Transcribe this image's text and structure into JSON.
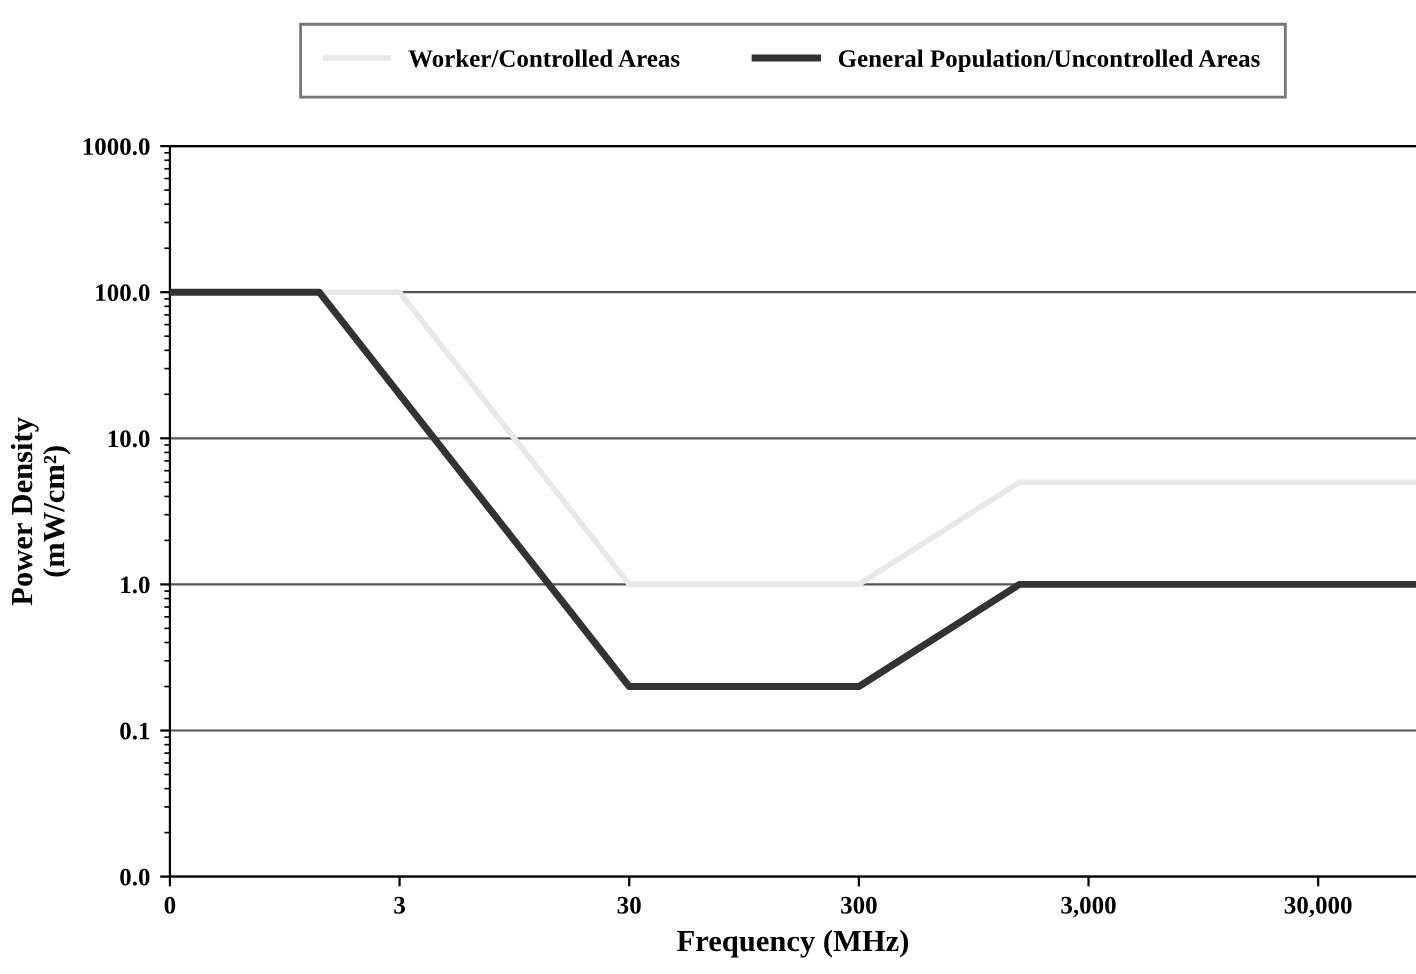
{
  "chart_data": {
    "type": "line",
    "xlabel": "Frequency (MHz)",
    "ylabel": "Power Density\n(mW/cm²)",
    "log": "xy",
    "xlim": [
      0.3,
      80000
    ],
    "ylim": [
      0.01,
      1000
    ],
    "xticks": [
      {
        "value": 0.3,
        "label": "0"
      },
      3,
      30,
      300,
      {
        "value": 3000,
        "label": "3,000"
      },
      {
        "value": 30000,
        "label": "30,000"
      }
    ],
    "yticks": [
      {
        "value": 0.01,
        "label": "0.0"
      },
      {
        "value": 0.1,
        "label": "0.1"
      },
      {
        "value": 1,
        "label": "1.0"
      },
      {
        "value": 10,
        "label": "10.0"
      },
      {
        "value": 100,
        "label": "100.0"
      },
      {
        "value": 1000,
        "label": "1000.0"
      }
    ],
    "grid": "y",
    "legend": "top",
    "marker": "none",
    "line_style": "solid",
    "series": [
      {
        "name": "Worker/Controlled Areas",
        "color": "#e8e8e8",
        "x": [
          0.3,
          3,
          30,
          300,
          1500,
          80000
        ],
        "values": [
          100,
          100,
          1,
          1,
          5,
          5
        ]
      },
      {
        "name": "General Population/Uncontrolled Areas",
        "color": "#333333",
        "x": [
          0.3,
          1.34,
          30,
          300,
          1500,
          80000
        ],
        "values": [
          100,
          100,
          0.2,
          0.2,
          1,
          1
        ]
      }
    ]
  }
}
